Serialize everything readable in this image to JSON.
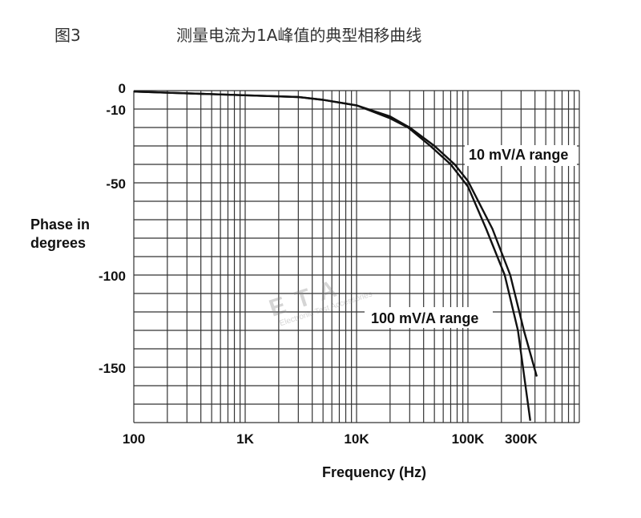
{
  "figure_label": "图3",
  "title": "测量电流为1A峰值的典型相移曲线",
  "watermark": {
    "logo": "ETA",
    "text": "Electronic Test Accessories"
  },
  "chart_data": {
    "type": "line",
    "title": "测量电流为1A峰值的典型相移曲线",
    "xlabel": "Frequency (Hz)",
    "ylabel": [
      "Phase in",
      "degrees"
    ],
    "x_scale": "log",
    "xlim": [
      100,
      1000000
    ],
    "ylim": [
      -180,
      0
    ],
    "grid": true,
    "x_ticks": [
      {
        "value": 100,
        "label": "100"
      },
      {
        "value": 1000,
        "label": "1K"
      },
      {
        "value": 10000,
        "label": "10K"
      },
      {
        "value": 100000,
        "label": "100K"
      },
      {
        "value": 300000,
        "label": "300K"
      }
    ],
    "y_ticks": [
      {
        "value": 0,
        "label": "0"
      },
      {
        "value": -10,
        "label": "-10"
      },
      {
        "value": -50,
        "label": "-50"
      },
      {
        "value": -100,
        "label": "-100"
      },
      {
        "value": -150,
        "label": "-150"
      }
    ],
    "series": [
      {
        "name": "10 mV/A range",
        "x": [
          100,
          1000,
          3000,
          5000,
          10000,
          20000,
          30000,
          50000,
          76000,
          100000,
          166000,
          240000,
          318000,
          415000
        ],
        "y": [
          -0.5,
          -2.5,
          -3.5,
          -5,
          -8,
          -14,
          -20,
          -30,
          -40,
          -49,
          -75,
          -100,
          -130,
          -155
        ]
      },
      {
        "name": "100 mV/A range",
        "x": [
          100,
          1000,
          3000,
          5000,
          10000,
          20000,
          29000,
          46000,
          70000,
          100000,
          146000,
          214000,
          281000,
          363000
        ],
        "y": [
          -0.5,
          -2.5,
          -3.5,
          -5,
          -8,
          -15,
          -20,
          -30,
          -40,
          -52,
          -75,
          -100,
          -130,
          -179
        ]
      }
    ]
  }
}
